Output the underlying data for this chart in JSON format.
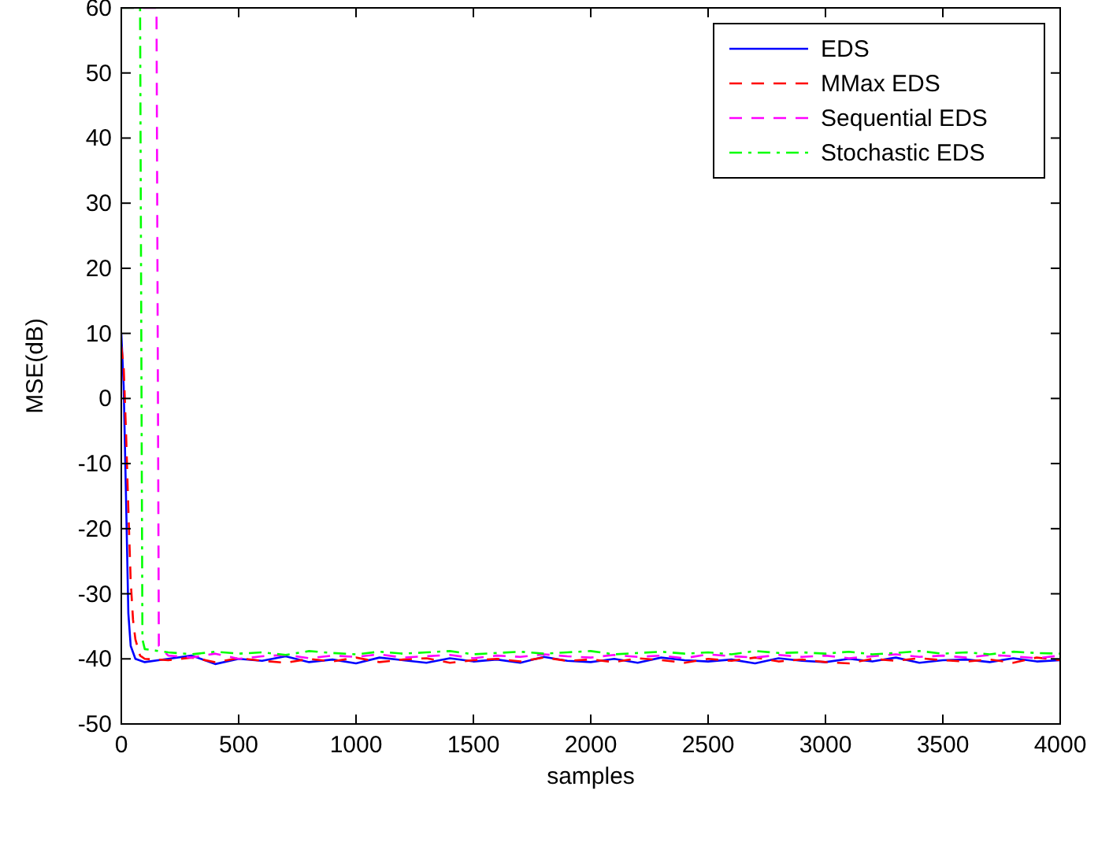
{
  "chart_data": {
    "type": "line",
    "xlabel": "samples",
    "ylabel": "MSE(dB)",
    "xlim": [
      0,
      4000
    ],
    "ylim": [
      -50,
      60
    ],
    "xticks": [
      0,
      500,
      1000,
      1500,
      2000,
      2500,
      3000,
      3500,
      4000
    ],
    "yticks": [
      -50,
      -40,
      -30,
      -20,
      -10,
      0,
      10,
      20,
      30,
      40,
      50,
      60
    ],
    "legend": "top right",
    "grid": false,
    "series": [
      {
        "name": "EDS",
        "color": "#0000ff",
        "line_style": "solid",
        "x": [
          0,
          10,
          20,
          30,
          40,
          50,
          60,
          100,
          200,
          300,
          400,
          500,
          600,
          700,
          800,
          900,
          1000,
          1100,
          1200,
          1300,
          1400,
          1500,
          1600,
          1700,
          1800,
          1900,
          2000,
          2100,
          2200,
          2300,
          2400,
          2500,
          2600,
          2700,
          2800,
          2900,
          3000,
          3100,
          3200,
          3300,
          3400,
          3500,
          3600,
          3700,
          3800,
          3900,
          4000
        ],
        "values": [
          10,
          2,
          -15,
          -33,
          -38,
          -39,
          -40,
          -40.5,
          -40,
          -39.5,
          -40.8,
          -40,
          -40.3,
          -39.6,
          -40.5,
          -40.1,
          -40.7,
          -39.8,
          -40.2,
          -40.6,
          -39.9,
          -40.4,
          -40.1,
          -40.6,
          -39.7,
          -40.3,
          -40.5,
          -40,
          -40.6,
          -39.8,
          -40.2,
          -40.4,
          -40.1,
          -40.7,
          -39.9,
          -40.3,
          -40.5,
          -40,
          -40.4,
          -39.8,
          -40.6,
          -40.2,
          -40.1,
          -40.5,
          -39.9,
          -40.4,
          -40.2
        ]
      },
      {
        "name": "MMax EDS",
        "color": "#ff0000",
        "line_style": "dashed",
        "x": [
          0,
          10,
          20,
          30,
          40,
          50,
          60,
          80,
          100,
          200,
          300,
          400,
          500,
          600,
          700,
          800,
          900,
          1000,
          1100,
          1200,
          1300,
          1400,
          1500,
          1600,
          1700,
          1800,
          1900,
          2000,
          2100,
          2200,
          2300,
          2400,
          2500,
          2600,
          2700,
          2800,
          2900,
          3000,
          3100,
          3200,
          3300,
          3400,
          3500,
          3600,
          3700,
          3800,
          3900,
          4000
        ],
        "values": [
          8,
          5,
          -5,
          -17,
          -28,
          -34,
          -37,
          -39.5,
          -40,
          -40.2,
          -39.8,
          -40.5,
          -39.9,
          -40.3,
          -40.6,
          -40,
          -40.4,
          -39.8,
          -40.5,
          -40.1,
          -39.9,
          -40.6,
          -40.2,
          -40,
          -40.4,
          -39.8,
          -40.3,
          -40.1,
          -40.5,
          -39.9,
          -40.2,
          -40.6,
          -40,
          -40.3,
          -39.8,
          -40.4,
          -40.1,
          -40.5,
          -40.7,
          -40,
          -40.3,
          -39.9,
          -40.2,
          -40.4,
          -40.1,
          -40.6,
          -39.8,
          -40.2
        ]
      },
      {
        "name": "Sequential EDS",
        "color": "#ff00ff",
        "line_style": "dashed",
        "x": [
          0,
          150,
          160,
          200,
          300,
          400,
          500,
          600,
          700,
          800,
          900,
          1000,
          1100,
          1200,
          1300,
          1400,
          1500,
          1600,
          1700,
          1800,
          1900,
          2000,
          2100,
          2200,
          2300,
          2400,
          2500,
          2600,
          2700,
          2800,
          2900,
          3000,
          3100,
          3200,
          3300,
          3400,
          3500,
          3600,
          3700,
          3800,
          3900,
          4000
        ],
        "values": [
          60,
          60,
          -38,
          -39.5,
          -39.8,
          -39.2,
          -40,
          -39.6,
          -39.4,
          -39.9,
          -39.5,
          -39.7,
          -39.3,
          -39.8,
          -39.6,
          -39.4,
          -39.9,
          -39.5,
          -39.7,
          -39.3,
          -39.6,
          -39.8,
          -39.4,
          -39.7,
          -39.5,
          -39.9,
          -39.3,
          -39.6,
          -39.8,
          -39.4,
          -39.7,
          -39.5,
          -39.9,
          -39.6,
          -39.3,
          -39.7,
          -39.5,
          -39.8,
          -39.4,
          -39.6,
          -39.9,
          -39.5
        ]
      },
      {
        "name": "Stochastic EDS",
        "color": "#00ff00",
        "line_style": "dashdot",
        "x": [
          0,
          80,
          90,
          100,
          200,
          300,
          400,
          500,
          600,
          700,
          800,
          900,
          1000,
          1100,
          1200,
          1300,
          1400,
          1500,
          1600,
          1700,
          1800,
          1900,
          2000,
          2100,
          2200,
          2300,
          2400,
          2500,
          2600,
          2700,
          2800,
          2900,
          3000,
          3100,
          3200,
          3300,
          3400,
          3500,
          3600,
          3700,
          3800,
          3900,
          4000
        ],
        "values": [
          60,
          60,
          -37,
          -38.5,
          -39,
          -39.3,
          -38.9,
          -39.2,
          -39,
          -39.4,
          -38.8,
          -39.1,
          -39.3,
          -38.9,
          -39.2,
          -39,
          -38.8,
          -39.3,
          -39.1,
          -38.9,
          -39.2,
          -39,
          -38.8,
          -39.3,
          -39.1,
          -38.9,
          -39.2,
          -39,
          -39.3,
          -38.8,
          -39.1,
          -39,
          -39.2,
          -38.9,
          -39.3,
          -39.1,
          -38.8,
          -39.2,
          -39,
          -39.3,
          -38.9,
          -39.1,
          -39.2
        ]
      }
    ]
  }
}
